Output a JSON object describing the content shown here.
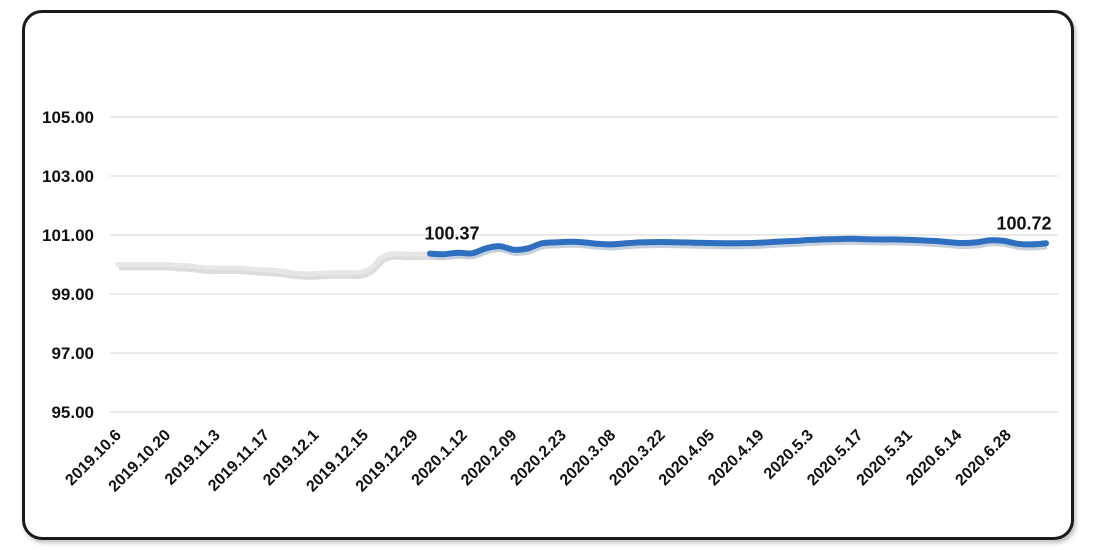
{
  "chart_data": {
    "type": "line",
    "ylim": [
      95,
      107
    ],
    "yticks": [
      "105.00",
      "103.00",
      "101.00",
      "99.00",
      "97.00",
      "95.00"
    ],
    "ytick_values": [
      105,
      103,
      101,
      99,
      97,
      95
    ],
    "grid": true,
    "x_labels": [
      "2019.10.6",
      "2019.10.20",
      "2019.11.3",
      "2019.11.17",
      "2019.12.1",
      "2019.12.15",
      "2019.12.29",
      "2020.1.12",
      "2020.2.09",
      "2020.2.23",
      "2020.3.08",
      "2020.3.22",
      "2020.4.05",
      "2020.4.19",
      "2020.5.3",
      "2020.5.17",
      "2020.5.31",
      "2020.6.14",
      "2020.6.28"
    ],
    "series": [
      {
        "color": "#e6e6e6",
        "values": [
          100.0,
          100.0,
          100.0,
          100.0,
          100.0,
          99.97,
          99.95,
          99.9,
          99.88,
          99.88,
          99.88,
          99.85,
          99.82,
          99.8,
          99.75,
          99.7,
          99.68,
          99.7,
          99.72,
          99.72,
          99.72,
          99.85,
          100.25,
          100.37,
          100.35,
          100.35,
          100.37
        ]
      },
      {
        "color": "#2f6fc0",
        "values": [
          100.37,
          100.35,
          100.4,
          100.38,
          100.55,
          100.62,
          100.5,
          100.55,
          100.72,
          100.75,
          100.77,
          100.75,
          100.7,
          100.68,
          100.72,
          100.75,
          100.76,
          100.76,
          100.75,
          100.74,
          100.73,
          100.72,
          100.72,
          100.73,
          100.75,
          100.78,
          100.8,
          100.83,
          100.85,
          100.86,
          100.87,
          100.86,
          100.85,
          100.85,
          100.84,
          100.82,
          100.8,
          100.76,
          100.73,
          100.75,
          100.82,
          100.8,
          100.7,
          100.68,
          100.72
        ]
      }
    ],
    "annotations": [
      "100.37",
      "100.72"
    ]
  }
}
